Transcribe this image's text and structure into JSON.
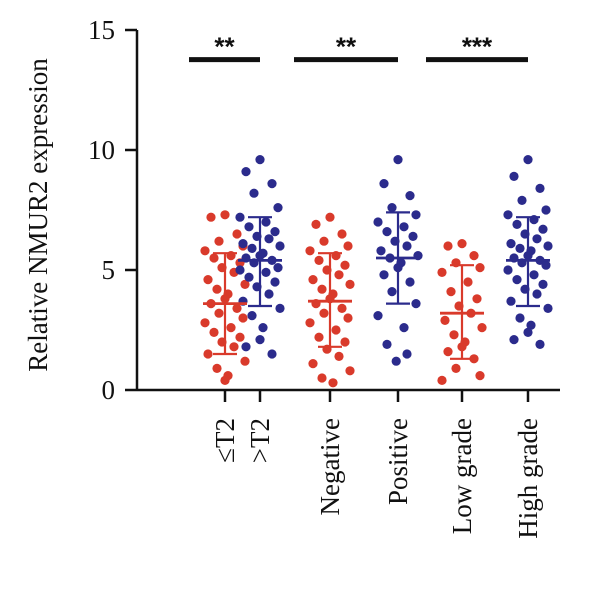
{
  "chart_data": {
    "type": "scatter",
    "ylabel": "Relative NMUR2 expression",
    "ylim": [
      0,
      15
    ],
    "yticks": [
      0,
      5,
      10,
      15
    ],
    "categories": [
      "≤T2",
      ">T2",
      "Negative",
      "Positive",
      "Low grade",
      "High grade"
    ],
    "colors": {
      "red": "#d93a2b",
      "blue": "#2b2b8c"
    },
    "groups": [
      {
        "category": "≤T2",
        "color": "red",
        "mean": 3.6,
        "sd_low": 1.5,
        "sd_high": 5.7,
        "points": [
          7.3,
          7.2,
          6.5,
          6.2,
          6.0,
          5.8,
          5.6,
          5.5,
          5.3,
          5.1,
          4.9,
          4.6,
          4.4,
          4.2,
          4.0,
          3.8,
          3.6,
          3.4,
          3.2,
          3.0,
          2.8,
          2.6,
          2.4,
          2.2,
          2.0,
          1.8,
          1.5,
          1.2,
          0.9,
          0.6,
          0.4
        ]
      },
      {
        "category": ">T2",
        "color": "blue",
        "mean": 5.4,
        "sd_low": 3.5,
        "sd_high": 7.2,
        "points": [
          9.6,
          9.1,
          8.6,
          8.2,
          7.6,
          7.2,
          7.0,
          6.8,
          6.6,
          6.4,
          6.3,
          6.1,
          6.0,
          5.9,
          5.7,
          5.6,
          5.5,
          5.4,
          5.3,
          5.1,
          5.0,
          4.9,
          4.7,
          4.5,
          4.3,
          4.0,
          3.7,
          3.4,
          3.1,
          2.6,
          2.1,
          1.8,
          1.5
        ]
      },
      {
        "category": "Negative",
        "color": "red",
        "mean": 3.7,
        "sd_low": 1.8,
        "sd_high": 5.7,
        "points": [
          7.2,
          6.9,
          6.5,
          6.2,
          6.0,
          5.8,
          5.6,
          5.4,
          5.2,
          5.0,
          4.8,
          4.6,
          4.4,
          4.2,
          4.0,
          3.8,
          3.6,
          3.4,
          3.2,
          3.0,
          2.8,
          2.5,
          2.2,
          2.0,
          1.7,
          1.4,
          1.1,
          0.8,
          0.5,
          0.3
        ]
      },
      {
        "category": "Positive",
        "color": "blue",
        "mean": 5.5,
        "sd_low": 3.6,
        "sd_high": 7.4,
        "points": [
          9.6,
          8.6,
          8.1,
          7.6,
          7.3,
          7.0,
          6.8,
          6.6,
          6.4,
          6.2,
          6.0,
          5.8,
          5.6,
          5.5,
          5.3,
          5.1,
          4.8,
          4.5,
          4.1,
          3.6,
          3.1,
          2.6,
          1.9,
          1.5,
          1.2
        ]
      },
      {
        "category": "Low grade",
        "color": "red",
        "mean": 3.2,
        "sd_low": 1.3,
        "sd_high": 5.2,
        "points": [
          6.1,
          6.0,
          5.6,
          5.3,
          5.1,
          4.9,
          4.5,
          4.1,
          3.8,
          3.5,
          3.2,
          2.9,
          2.6,
          2.3,
          2.0,
          1.8,
          1.6,
          1.3,
          0.9,
          0.6,
          0.4
        ]
      },
      {
        "category": "High grade",
        "color": "blue",
        "mean": 5.4,
        "sd_low": 3.5,
        "sd_high": 7.2,
        "points": [
          9.6,
          8.9,
          8.4,
          7.9,
          7.5,
          7.3,
          7.1,
          6.9,
          6.7,
          6.5,
          6.3,
          6.1,
          6.0,
          5.9,
          5.8,
          5.6,
          5.5,
          5.4,
          5.3,
          5.2,
          5.0,
          4.8,
          4.6,
          4.4,
          4.2,
          4.0,
          3.7,
          3.4,
          3.0,
          2.7,
          2.4,
          2.1,
          1.9
        ]
      }
    ],
    "significance": [
      {
        "from": 0,
        "to": 1,
        "y": 14.1,
        "label": "**"
      },
      {
        "from": 2,
        "to": 3,
        "y": 14.1,
        "label": "**"
      },
      {
        "from": 4,
        "to": 5,
        "y": 14.1,
        "label": "***"
      }
    ]
  }
}
